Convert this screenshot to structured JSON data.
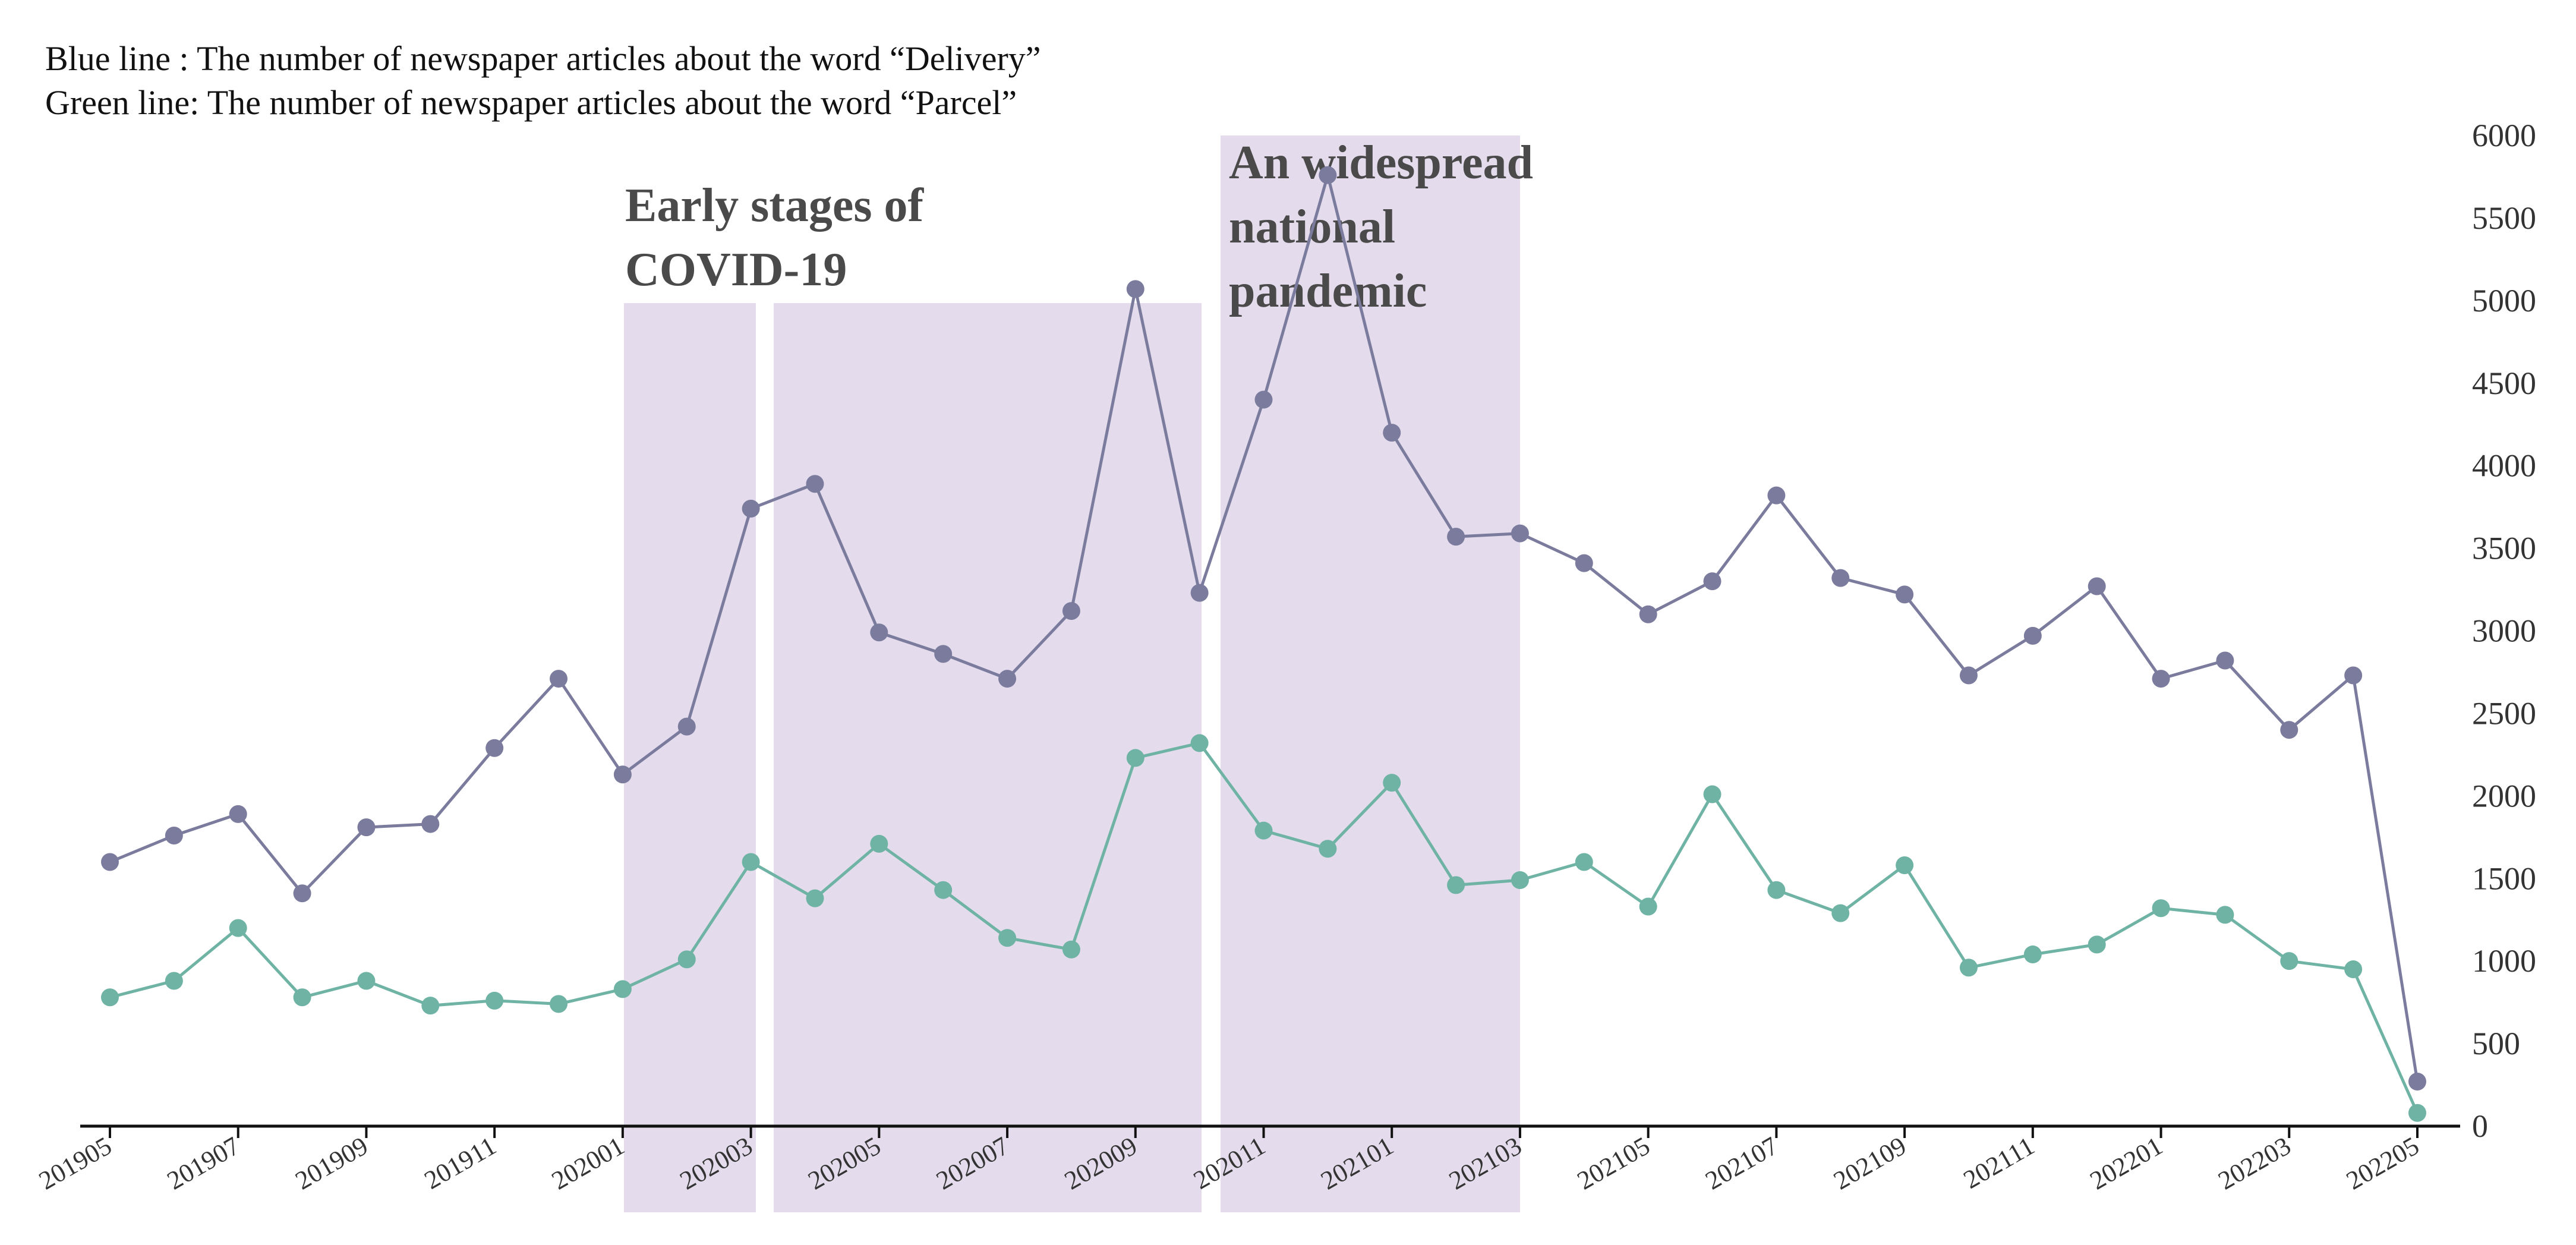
{
  "legend": {
    "blue": "Blue line : The number of newspaper articles about the word “Delivery”",
    "green": "Green line: The number of newspaper articles about the word “Parcel”"
  },
  "annotations": {
    "early": [
      "Early stages of",
      "COVID-19"
    ],
    "widespread": [
      "An widespread",
      "national",
      "pandemic"
    ]
  },
  "colors": {
    "delivery": "#7b7b9e",
    "parcel": "#6fb3a4",
    "shade": "#e4dcec",
    "axis": "#111111"
  },
  "chart_data": {
    "type": "line",
    "title": "",
    "xlabel": "",
    "ylabel": "",
    "ylim": [
      0,
      6000
    ],
    "yticks": [
      0,
      500,
      1000,
      1500,
      2000,
      2500,
      3000,
      3500,
      4000,
      4500,
      5000,
      5500,
      6000
    ],
    "x": [
      "201905",
      "201906",
      "201907",
      "201908",
      "201909",
      "201910",
      "201911",
      "201912",
      "202001",
      "202002",
      "202003",
      "202004",
      "202005",
      "202006",
      "202007",
      "202008",
      "202009",
      "202010",
      "202011",
      "202012",
      "202101",
      "202102",
      "202103",
      "202104",
      "202105",
      "202106",
      "202107",
      "202108",
      "202109",
      "202110",
      "202111",
      "202112",
      "202201",
      "202202",
      "202203",
      "202204",
      "202205"
    ],
    "xtick_labels": [
      "201905",
      "201907",
      "201909",
      "201911",
      "202001",
      "202003",
      "202005",
      "202007",
      "202009",
      "202011",
      "202101",
      "202103",
      "202105",
      "202107",
      "202109",
      "202111",
      "202201",
      "202203",
      "202205"
    ],
    "series": [
      {
        "name": "Delivery",
        "color": "#7b7b9e",
        "values": [
          1600,
          1760,
          1890,
          1410,
          1810,
          1830,
          2290,
          2710,
          2130,
          2420,
          3740,
          3890,
          2990,
          2860,
          2710,
          3120,
          5070,
          3230,
          4400,
          5760,
          4200,
          3570,
          3590,
          3410,
          3100,
          3300,
          3820,
          3320,
          3220,
          2730,
          2970,
          3270,
          2710,
          2820,
          2400,
          2730,
          270
        ]
      },
      {
        "name": "Parcel",
        "color": "#6fb3a4",
        "values": [
          780,
          880,
          1200,
          780,
          880,
          730,
          760,
          740,
          830,
          1010,
          1600,
          1380,
          1710,
          1430,
          1140,
          1070,
          2230,
          2320,
          1790,
          1680,
          2080,
          1460,
          1490,
          1600,
          1330,
          2010,
          1430,
          1290,
          1580,
          960,
          1040,
          1100,
          1320,
          1280,
          1000,
          950,
          80
        ]
      }
    ],
    "shaded_periods": [
      {
        "start": "202001",
        "end": "202002",
        "label": "Early stages of COVID-19"
      },
      {
        "start": "202003",
        "end": "202009"
      },
      {
        "start": "202010",
        "end": "202102",
        "label": "An widespread national pandemic"
      }
    ]
  }
}
